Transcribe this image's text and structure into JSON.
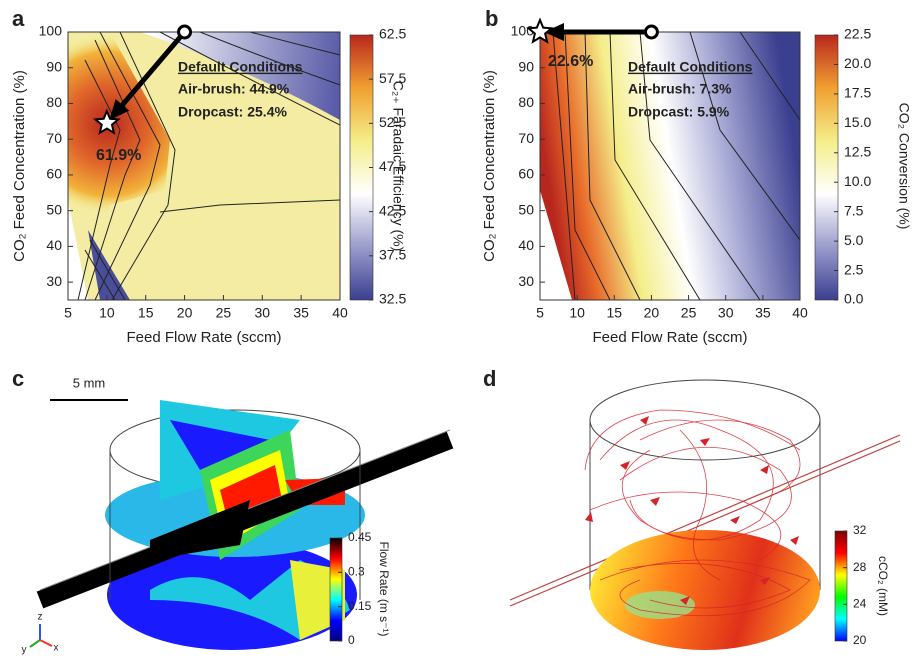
{
  "chart_data": [
    {
      "type": "contour",
      "panel": "a",
      "xlabel": "Feed Flow Rate (sccm)",
      "ylabel": "CO₂ Feed Concentration (%)",
      "xlim": [
        5,
        40
      ],
      "xticks": [
        5,
        10,
        15,
        20,
        25,
        30,
        35,
        40
      ],
      "ylim": [
        25,
        100
      ],
      "yticks": [
        30,
        40,
        50,
        60,
        70,
        80,
        90,
        100
      ],
      "colorbar": {
        "label": "C₂₊ Faradaic Efficiency (%)",
        "lim": [
          32.5,
          62.5
        ],
        "ticks": [
          32.5,
          37.5,
          42.5,
          47.5,
          52.5,
          57.5,
          62.5
        ],
        "colors": [
          "#3b3f8f",
          "#9a9ccc",
          "#ffffff",
          "#f4ee8a",
          "#f0a030",
          "#b8271e"
        ]
      },
      "annotation_title": "Default Conditions",
      "annotations": [
        "Air-brush: 44.9%",
        "Dropcast: 25.4%"
      ],
      "optimum": {
        "x": 10,
        "y": 74.5,
        "label": "61.9%"
      },
      "default": {
        "x": 20,
        "y": 100
      }
    },
    {
      "type": "contour",
      "panel": "b",
      "xlabel": "Feed Flow Rate (sccm)",
      "ylabel": "CO₂ Feed Concentration (%)",
      "xlim": [
        5,
        40
      ],
      "xticks": [
        5,
        10,
        15,
        20,
        25,
        30,
        35,
        40
      ],
      "ylim": [
        25,
        100
      ],
      "yticks": [
        30,
        40,
        50,
        60,
        70,
        80,
        90,
        100
      ],
      "colorbar": {
        "label": "CO₂ Conversion (%)",
        "lim": [
          0,
          22.5
        ],
        "ticks": [
          {
            "value": 0,
            "label": "0.0"
          },
          2.5,
          {
            "value": 5,
            "label": "5.0"
          },
          7.5,
          {
            "value": 10,
            "label": "10.0"
          },
          12.5,
          {
            "value": 15,
            "label": "15.0"
          },
          17.5,
          {
            "value": 20,
            "label": "20.0"
          },
          22.5
        ],
        "colors": [
          "#3b3f8f",
          "#9a9ccc",
          "#ffffff",
          "#f4ee8a",
          "#f0a030",
          "#b8271e"
        ]
      },
      "annotation_title": "Default Conditions",
      "annotations": [
        "Air-brush: 7.3%",
        "Dropcast: 5.9%"
      ],
      "optimum": {
        "x": 5,
        "y": 100,
        "label": "22.6%"
      },
      "default": {
        "x": 20,
        "y": 100
      }
    }
  ],
  "panels": [
    {
      "label": "c",
      "scale_bar": "5 mm",
      "axes": [
        "x",
        "y",
        "z"
      ],
      "colorbar": {
        "label": "Flow Rate (m s⁻¹)",
        "lim": [
          0,
          0.45
        ],
        "ticks": [
          0,
          0.15,
          0.3,
          0.45
        ],
        "colors": [
          "#00007f",
          "#0000ff",
          "#00ffff",
          "#ffff00",
          "#ff0000",
          "#000000"
        ]
      }
    },
    {
      "label": "d",
      "colorbar": {
        "label": "cCO₂ (mM)",
        "lim": [
          20,
          32
        ],
        "ticks": [
          20,
          24,
          28,
          32
        ],
        "colors": [
          "#0000ff",
          "#00ffff",
          "#00ff00",
          "#ffff00",
          "#ff0000",
          "#7f0000"
        ]
      }
    }
  ]
}
